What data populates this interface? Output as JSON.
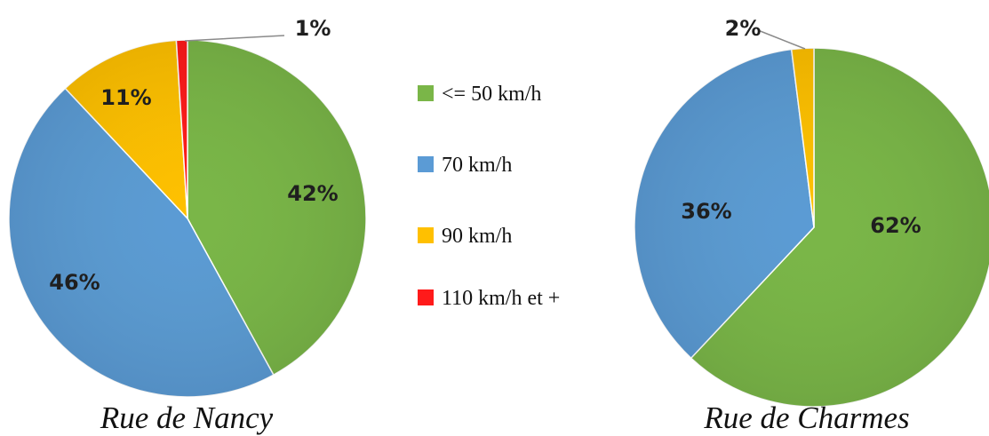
{
  "legend": [
    {
      "label": "<= 50 km/h",
      "color": "#7ab648"
    },
    {
      "label": "70 km/h",
      "color": "#5b9bd5"
    },
    {
      "label": "90 km/h",
      "color": "#ffc000"
    },
    {
      "label": "110 km/h et +",
      "color": "#ff1a1a"
    }
  ],
  "chart_data": [
    {
      "type": "pie",
      "title": "Rue de Nancy",
      "categories": [
        "<= 50 km/h",
        "70 km/h",
        "90 km/h",
        "110 km/h et +"
      ],
      "values": [
        42,
        46,
        11,
        1
      ],
      "labels": [
        "42%",
        "46%",
        "11%",
        "1%"
      ],
      "colors": [
        "#7ab648",
        "#5b9bd5",
        "#ffc000",
        "#ff1a1a"
      ]
    },
    {
      "type": "pie",
      "title": "Rue de Charmes",
      "categories": [
        "<= 50 km/h",
        "70 km/h",
        "90 km/h"
      ],
      "values": [
        62,
        36,
        2
      ],
      "labels": [
        "62%",
        "36%",
        "2%"
      ],
      "colors": [
        "#7ab648",
        "#5b9bd5",
        "#ffc000"
      ]
    }
  ]
}
